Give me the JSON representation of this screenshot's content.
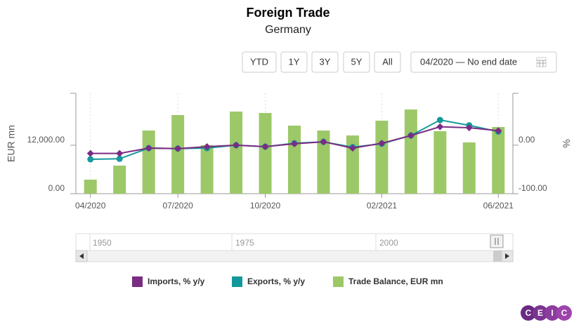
{
  "toolbar": {
    "buttons": [
      "YTD",
      "1Y",
      "3Y",
      "5Y",
      "All"
    ],
    "date_range": "04/2020 — No end date"
  },
  "navigator": {
    "labels": [
      "1950",
      "1975",
      "2000"
    ]
  },
  "logo": [
    "C",
    "E",
    "I",
    "C"
  ],
  "chart_data": {
    "type": "combo",
    "title": "Foreign Trade",
    "subtitle": "Germany",
    "y_label": "EUR mn",
    "y2_label": "%",
    "categories": [
      "04/2020",
      null,
      null,
      "07/2020",
      null,
      null,
      "10/2020",
      null,
      null,
      null,
      "02/2021",
      null,
      null,
      null,
      "06/2021"
    ],
    "ylim": [
      0,
      24870
    ],
    "yticks": [
      {
        "value": 0,
        "label": "0.00"
      },
      {
        "value": 12000,
        "label": "12,000.00"
      }
    ],
    "y2lim": [
      -100,
      107
    ],
    "y2ticks": [
      {
        "value": -100,
        "label": "-100.00"
      },
      {
        "value": 0,
        "label": "0.00"
      }
    ],
    "grid": true,
    "series": [
      {
        "name": "Imports, % y/y",
        "type": "line",
        "marker": "diamond",
        "axis": "y2",
        "color": "#7b2c83",
        "values": [
          -17,
          -17,
          -6,
          -7,
          -3,
          0,
          -3,
          3,
          7,
          -6,
          4,
          20,
          38,
          36,
          30
        ]
      },
      {
        "name": "Exports, % y/y",
        "type": "line",
        "marker": "circle",
        "axis": "y2",
        "color": "#13999b",
        "values": [
          -29,
          -28,
          -6,
          -7,
          -6,
          0,
          -3,
          4,
          7,
          -4,
          3,
          20,
          52,
          41,
          28
        ]
      },
      {
        "name": "Trade Balance, EUR mn",
        "type": "bar",
        "color": "#9dc868",
        "values": [
          3480,
          6960,
          15650,
          19480,
          12000,
          20350,
          20000,
          16870,
          15650,
          14430,
          18090,
          20870,
          15480,
          12700,
          16520
        ]
      }
    ]
  }
}
